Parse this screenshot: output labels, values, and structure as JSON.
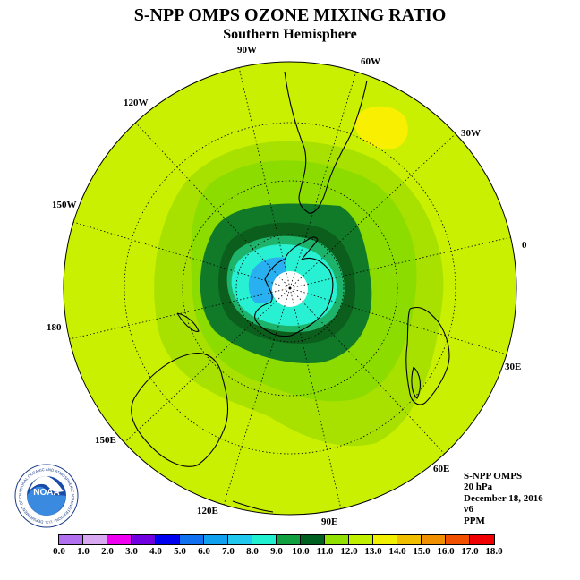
{
  "title": "S-NPP OMPS OZONE MIXING RATIO",
  "subtitle": "Southern Hemisphere",
  "logo": {
    "text": "NOAA",
    "ring_text": "NATIONAL OCEANIC AND ATMOSPHERIC ADMINISTRATION · U.S. DEPARTMENT OF COMMERCE"
  },
  "info": {
    "instrument": "S-NPP OMPS",
    "level": "20 hPa",
    "date": "December 18, 2016",
    "version": "v6",
    "units": "PPM"
  },
  "longitude_labels": {
    "w90": "90W",
    "w60": "60W",
    "w30": "30W",
    "lon0": "0",
    "e30": "30E",
    "e60": "60E",
    "e90": "90E",
    "e120": "120E",
    "e150": "150E",
    "lon180": "180",
    "w150": "150W",
    "w120": "120W"
  },
  "colorbar": {
    "ticks": [
      "0.0",
      "1.0",
      "2.0",
      "3.0",
      "4.0",
      "5.0",
      "6.0",
      "7.0",
      "8.0",
      "9.0",
      "10.0",
      "11.0",
      "12.0",
      "13.0",
      "14.0",
      "15.0",
      "16.0",
      "17.0",
      "18.0"
    ],
    "colors": [
      "#b070f0",
      "#d8a8f0",
      "#f000f0",
      "#7000e0",
      "#0000f0",
      "#1070f0",
      "#10a0f0",
      "#20c8f0",
      "#20f0d0",
      "#10a040",
      "#006020",
      "#90e000",
      "#c0f000",
      "#f0f000",
      "#f0c000",
      "#f09000",
      "#f05000",
      "#f00000",
      "#905030"
    ]
  },
  "map": {
    "background_color": "#c8f000",
    "contours": [
      {
        "level": "11.0",
        "color": "#a8e000"
      },
      {
        "level": "10.0",
        "color": "#8cdc00"
      },
      {
        "level": "9.0",
        "color": "#107a28"
      },
      {
        "level": "8.0",
        "color": "#0b5e1c"
      },
      {
        "level": "7.0",
        "color": "#1db36a"
      },
      {
        "level": "6.0",
        "color": "#28f0d2"
      },
      {
        "level": "5.0",
        "color": "#28b0f0"
      },
      {
        "level": "pole",
        "color": "#ffffff"
      },
      {
        "level": "13.0",
        "color": "#f8f000"
      }
    ]
  }
}
